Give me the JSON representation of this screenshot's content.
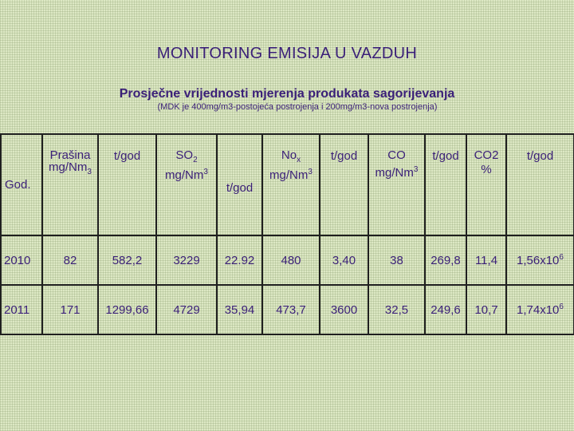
{
  "title": "MONITORING EMISIJA U VAZDUH",
  "subtitle": "Prosječne vrijednosti mjerenja produkata sagorijevanja",
  "note": "(MDK je 400mg/m3-postojeća postrojenja i 200mg/m3-nova postrojenja)",
  "table": {
    "headers": {
      "god": "God.",
      "prasina_l1": "Prašina",
      "prasina_l2": "mg/Nm",
      "prasina_sub": "3",
      "tgod": "t/god",
      "so2_l1": "SO",
      "so2_sub": "2",
      "so2_l2": "mg/Nm",
      "so2_sup": "3",
      "nox_l1": "No",
      "nox_sub": "x",
      "nox_l2": "mg/Nm",
      "nox_sup": "3",
      "co_l1": "CO",
      "co_l2": "mg/Nm",
      "co_sup": "3",
      "co2_l1": "CO2",
      "co2_l2": "%"
    },
    "rows": [
      {
        "year": "2010",
        "prasina": "82",
        "prasina_t": "582,2",
        "so2": "3229",
        "so2_t": "22.92",
        "nox": "480",
        "nox_t": "3,40",
        "co": "38",
        "co_t": "269,8",
        "co2": "11,4",
        "co2_t": "1,56x10",
        "co2_t_sup": "6"
      },
      {
        "year": "2011",
        "prasina": "171",
        "prasina_t": "1299,66",
        "so2": "4729",
        "so2_t": "35,94",
        "nox": "473,7",
        "nox_t": "3600",
        "co": "32,5",
        "co_t": "249,6",
        "co2": "10,7",
        "co2_t": "1,74x10",
        "co2_t_sup": "6"
      }
    ]
  }
}
